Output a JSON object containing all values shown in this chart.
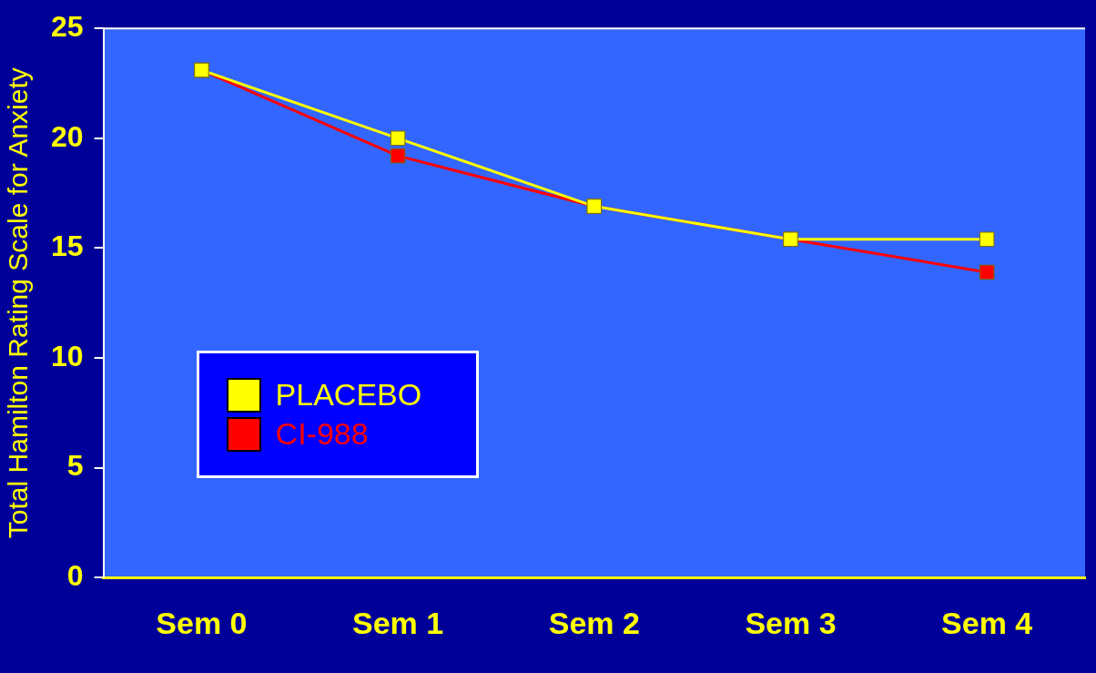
{
  "chart_data": {
    "type": "line",
    "ylabel": "Total Hamilton Rating Scale for Anxiety",
    "categories": [
      "Sem 0",
      "Sem 1",
      "Sem 2",
      "Sem 3",
      "Sem 4"
    ],
    "series": [
      {
        "name": "PLACEBO",
        "color": "#ffff00",
        "values": [
          23.1,
          20.0,
          16.9,
          15.4,
          15.4
        ]
      },
      {
        "name": "CI-988",
        "color": "#ff0000",
        "values": [
          23.1,
          19.2,
          16.9,
          15.4,
          13.9
        ]
      }
    ],
    "ylim": [
      0,
      25
    ],
    "yticks": [
      0,
      5,
      10,
      15,
      20,
      25
    ],
    "grid": false,
    "legend": "left",
    "marker": "square",
    "line_style": "solid"
  }
}
